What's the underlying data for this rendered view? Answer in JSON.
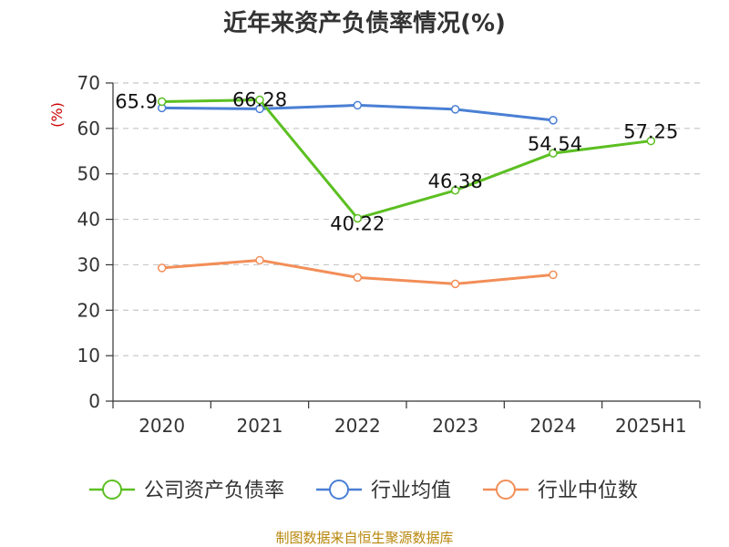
{
  "chart_data": {
    "type": "line",
    "title": "近年来资产负债率情况(%)",
    "ylabel": "(%)",
    "xlabel": "",
    "categories": [
      "2020",
      "2021",
      "2022",
      "2023",
      "2024",
      "2025H1"
    ],
    "ylim": [
      0,
      70
    ],
    "yticks": [
      0,
      10,
      20,
      30,
      40,
      50,
      60,
      70
    ],
    "grid": true,
    "legend_position": "bottom",
    "series": [
      {
        "name": "公司资产负债率",
        "color": "#5cbf22",
        "values": [
          65.9,
          66.28,
          40.22,
          46.38,
          54.54,
          57.25
        ],
        "labels": [
          "65.9",
          "66.28",
          "40.22",
          "46.38",
          "54.54",
          "57.25"
        ]
      },
      {
        "name": "行业均值",
        "color": "#4a7fd4",
        "values": [
          64.5,
          64.3,
          65.1,
          64.2,
          61.8,
          null
        ]
      },
      {
        "name": "行业中位数",
        "color": "#f28e58",
        "values": [
          29.3,
          31.0,
          27.2,
          25.8,
          27.8,
          null
        ]
      }
    ]
  },
  "footer": {
    "source": "制图数据来自恒生聚源数据库"
  }
}
